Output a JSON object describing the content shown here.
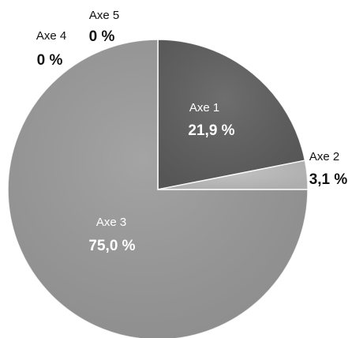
{
  "chart_data": {
    "type": "pie",
    "categories": [
      "Axe 1",
      "Axe 2",
      "Axe 3",
      "Axe 4",
      "Axe 5"
    ],
    "values": [
      21.9,
      3.1,
      75.0,
      0,
      0
    ],
    "value_labels": [
      "21,9 %",
      "3,1 %",
      "75,0 %",
      "0 %",
      "0 %"
    ],
    "title": "",
    "legend": "none",
    "colors": [
      "#5e5e5e",
      "#bdbdbd",
      "#9a9a9a",
      "#9a9a9a",
      "#9a9a9a"
    ]
  }
}
